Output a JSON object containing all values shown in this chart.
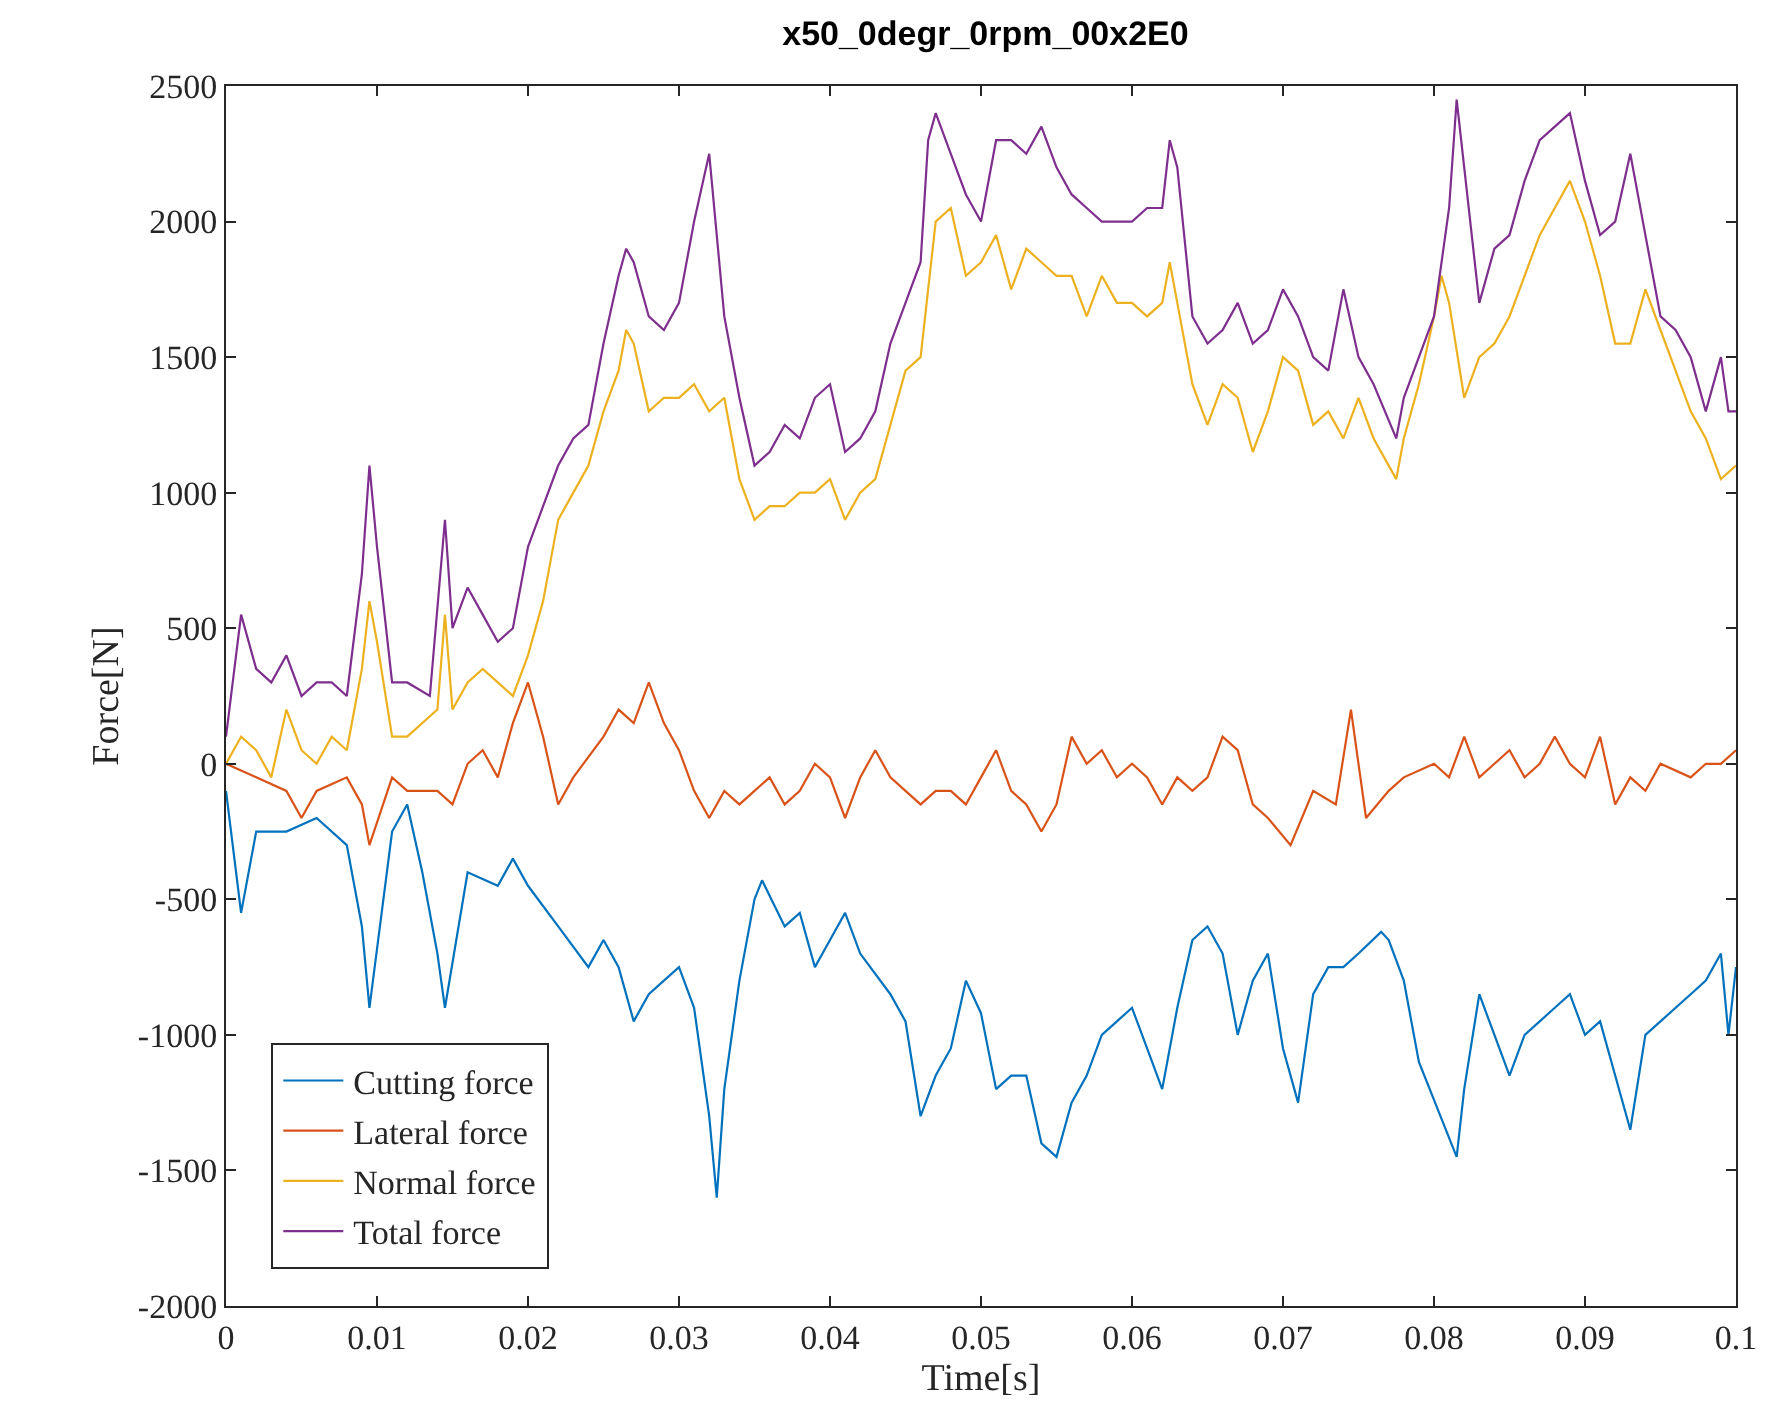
{
  "chart_data": {
    "type": "line",
    "title": "x50_0degr_0rpm_00x2E0",
    "xlabel": "Time[s]",
    "ylabel": "Force[N]",
    "xlim": [
      0,
      0.1
    ],
    "xticks": [
      0,
      0.01,
      0.02,
      0.03,
      0.04,
      0.05,
      0.06,
      0.07,
      0.08,
      0.09,
      0.1
    ],
    "ylim": [
      -2000,
      2500
    ],
    "yticks": [
      -2000,
      -1500,
      -1000,
      -500,
      0,
      500,
      1000,
      1500,
      2000,
      2500
    ],
    "legend": "bottom left",
    "marker": "none",
    "line_style": "solid",
    "series": [
      {
        "name": "Cutting force",
        "color": "#0072bd",
        "x": [
          0,
          0.001,
          0.002,
          0.004,
          0.006,
          0.008,
          0.009,
          0.0095,
          0.011,
          0.012,
          0.013,
          0.014,
          0.0145,
          0.016,
          0.018,
          0.019,
          0.02,
          0.022,
          0.024,
          0.025,
          0.026,
          0.027,
          0.028,
          0.029,
          0.03,
          0.031,
          0.032,
          0.0325,
          0.033,
          0.034,
          0.035,
          0.0355,
          0.037,
          0.038,
          0.039,
          0.04,
          0.041,
          0.042,
          0.044,
          0.045,
          0.046,
          0.047,
          0.048,
          0.049,
          0.05,
          0.051,
          0.052,
          0.053,
          0.054,
          0.055,
          0.056,
          0.057,
          0.058,
          0.059,
          0.06,
          0.061,
          0.062,
          0.063,
          0.064,
          0.065,
          0.066,
          0.067,
          0.068,
          0.069,
          0.07,
          0.071,
          0.072,
          0.073,
          0.074,
          0.075,
          0.0765,
          0.077,
          0.078,
          0.079,
          0.0815,
          0.082,
          0.083,
          0.084,
          0.085,
          0.086,
          0.087,
          0.088,
          0.089,
          0.09,
          0.091,
          0.092,
          0.093,
          0.094,
          0.095,
          0.097,
          0.098,
          0.099,
          0.0995,
          0.1
        ],
        "values": [
          -100,
          -550,
          -250,
          -250,
          -200,
          -300,
          -600,
          -900,
          -250,
          -150,
          -400,
          -700,
          -900,
          -400,
          -450,
          -350,
          -450,
          -600,
          -750,
          -650,
          -750,
          -950,
          -850,
          -800,
          -750,
          -900,
          -1300,
          -1600,
          -1200,
          -800,
          -500,
          -430,
          -600,
          -550,
          -750,
          -650,
          -550,
          -700,
          -850,
          -950,
          -1300,
          -1150,
          -1050,
          -800,
          -920,
          -1200,
          -1150,
          -1150,
          -1400,
          -1450,
          -1250,
          -1150,
          -1000,
          -950,
          -900,
          -1050,
          -1200,
          -900,
          -650,
          -600,
          -700,
          -1000,
          -800,
          -700,
          -1050,
          -1250,
          -850,
          -750,
          -750,
          -700,
          -620,
          -650,
          -800,
          -1100,
          -1450,
          -1200,
          -850,
          -1000,
          -1150,
          -1000,
          -950,
          -900,
          -850,
          -1000,
          -950,
          -1150,
          -1350,
          -1000,
          -950,
          -850,
          -800,
          -700,
          -1000,
          -750
        ]
      },
      {
        "name": "Lateral force",
        "color": "#d95319",
        "x": [
          0,
          0.002,
          0.004,
          0.005,
          0.006,
          0.008,
          0.009,
          0.0095,
          0.011,
          0.012,
          0.014,
          0.015,
          0.016,
          0.017,
          0.018,
          0.019,
          0.02,
          0.021,
          0.022,
          0.023,
          0.025,
          0.026,
          0.027,
          0.028,
          0.029,
          0.03,
          0.031,
          0.032,
          0.033,
          0.034,
          0.035,
          0.036,
          0.037,
          0.038,
          0.039,
          0.04,
          0.041,
          0.042,
          0.043,
          0.044,
          0.045,
          0.046,
          0.047,
          0.048,
          0.049,
          0.05,
          0.051,
          0.052,
          0.053,
          0.054,
          0.055,
          0.056,
          0.057,
          0.058,
          0.059,
          0.06,
          0.061,
          0.062,
          0.063,
          0.064,
          0.065,
          0.066,
          0.067,
          0.068,
          0.069,
          0.0705,
          0.072,
          0.0735,
          0.0745,
          0.075,
          0.0755,
          0.077,
          0.078,
          0.08,
          0.081,
          0.082,
          0.083,
          0.084,
          0.085,
          0.086,
          0.087,
          0.088,
          0.089,
          0.09,
          0.091,
          0.092,
          0.093,
          0.094,
          0.095,
          0.097,
          0.098,
          0.099,
          0.1
        ],
        "values": [
          0,
          -50,
          -100,
          -200,
          -100,
          -50,
          -150,
          -300,
          -50,
          -100,
          -100,
          -150,
          0,
          50,
          -50,
          150,
          300,
          100,
          -150,
          -50,
          100,
          200,
          150,
          300,
          150,
          50,
          -100,
          -200,
          -100,
          -150,
          -100,
          -50,
          -150,
          -100,
          0,
          -50,
          -200,
          -50,
          50,
          -50,
          -100,
          -150,
          -100,
          -100,
          -150,
          -50,
          50,
          -100,
          -150,
          -250,
          -150,
          100,
          0,
          50,
          -50,
          0,
          -50,
          -150,
          -50,
          -100,
          -50,
          100,
          50,
          -150,
          -200,
          -300,
          -100,
          -150,
          200,
          0,
          -200,
          -100,
          -50,
          0,
          -50,
          100,
          -50,
          0,
          50,
          -50,
          0,
          100,
          0,
          -50,
          100,
          -150,
          -50,
          -100,
          0,
          -50,
          0,
          0,
          50
        ]
      },
      {
        "name": "Normal force",
        "color": "#edb120",
        "x": [
          0,
          0.001,
          0.002,
          0.003,
          0.004,
          0.005,
          0.006,
          0.007,
          0.008,
          0.009,
          0.0095,
          0.01,
          0.011,
          0.012,
          0.014,
          0.0145,
          0.015,
          0.016,
          0.017,
          0.018,
          0.019,
          0.02,
          0.021,
          0.022,
          0.023,
          0.024,
          0.025,
          0.026,
          0.0265,
          0.027,
          0.028,
          0.029,
          0.03,
          0.031,
          0.032,
          0.033,
          0.034,
          0.035,
          0.036,
          0.037,
          0.038,
          0.039,
          0.04,
          0.041,
          0.042,
          0.043,
          0.044,
          0.045,
          0.046,
          0.047,
          0.048,
          0.049,
          0.05,
          0.051,
          0.052,
          0.053,
          0.054,
          0.055,
          0.056,
          0.057,
          0.058,
          0.059,
          0.06,
          0.061,
          0.062,
          0.0625,
          0.063,
          0.064,
          0.065,
          0.066,
          0.067,
          0.068,
          0.069,
          0.07,
          0.071,
          0.072,
          0.073,
          0.074,
          0.075,
          0.076,
          0.0775,
          0.078,
          0.079,
          0.08,
          0.0805,
          0.081,
          0.082,
          0.083,
          0.084,
          0.085,
          0.086,
          0.087,
          0.088,
          0.089,
          0.09,
          0.091,
          0.092,
          0.093,
          0.094,
          0.095,
          0.096,
          0.097,
          0.098,
          0.099,
          0.1
        ],
        "values": [
          0,
          100,
          50,
          -50,
          200,
          50,
          0,
          100,
          50,
          350,
          600,
          450,
          100,
          100,
          200,
          550,
          200,
          300,
          350,
          300,
          250,
          400,
          600,
          900,
          1000,
          1100,
          1300,
          1450,
          1600,
          1550,
          1300,
          1350,
          1350,
          1400,
          1300,
          1350,
          1050,
          900,
          950,
          950,
          1000,
          1000,
          1050,
          900,
          1000,
          1050,
          1250,
          1450,
          1500,
          2000,
          2050,
          1800,
          1850,
          1950,
          1750,
          1900,
          1850,
          1800,
          1800,
          1650,
          1800,
          1700,
          1700,
          1650,
          1700,
          1850,
          1700,
          1400,
          1250,
          1400,
          1350,
          1150,
          1300,
          1500,
          1450,
          1250,
          1300,
          1200,
          1350,
          1200,
          1050,
          1200,
          1400,
          1650,
          1800,
          1700,
          1350,
          1500,
          1550,
          1650,
          1800,
          1950,
          2050,
          2150,
          2000,
          1800,
          1550,
          1550,
          1750,
          1600,
          1450,
          1300,
          1200,
          1050,
          1100
        ]
      },
      {
        "name": "Total force",
        "color": "#7e2f8e",
        "x": [
          0,
          0.001,
          0.002,
          0.003,
          0.004,
          0.005,
          0.006,
          0.007,
          0.008,
          0.009,
          0.0095,
          0.01,
          0.011,
          0.012,
          0.0135,
          0.0145,
          0.015,
          0.016,
          0.017,
          0.018,
          0.019,
          0.02,
          0.021,
          0.022,
          0.023,
          0.024,
          0.025,
          0.026,
          0.0265,
          0.027,
          0.028,
          0.029,
          0.03,
          0.031,
          0.032,
          0.033,
          0.034,
          0.035,
          0.036,
          0.037,
          0.038,
          0.039,
          0.04,
          0.041,
          0.042,
          0.043,
          0.044,
          0.045,
          0.046,
          0.0465,
          0.047,
          0.048,
          0.049,
          0.05,
          0.051,
          0.052,
          0.053,
          0.054,
          0.055,
          0.056,
          0.057,
          0.058,
          0.059,
          0.06,
          0.061,
          0.062,
          0.0625,
          0.063,
          0.064,
          0.065,
          0.066,
          0.067,
          0.068,
          0.069,
          0.07,
          0.071,
          0.072,
          0.073,
          0.074,
          0.075,
          0.076,
          0.0775,
          0.078,
          0.079,
          0.08,
          0.081,
          0.0815,
          0.082,
          0.083,
          0.084,
          0.085,
          0.086,
          0.087,
          0.088,
          0.089,
          0.09,
          0.091,
          0.092,
          0.093,
          0.094,
          0.095,
          0.096,
          0.097,
          0.098,
          0.099,
          0.0995,
          0.1
        ],
        "values": [
          100,
          550,
          350,
          300,
          400,
          250,
          300,
          300,
          250,
          700,
          1100,
          800,
          300,
          300,
          250,
          900,
          500,
          650,
          550,
          450,
          500,
          800,
          950,
          1100,
          1200,
          1250,
          1550,
          1800,
          1900,
          1850,
          1650,
          1600,
          1700,
          2000,
          2250,
          1650,
          1350,
          1100,
          1150,
          1250,
          1200,
          1350,
          1400,
          1150,
          1200,
          1300,
          1550,
          1700,
          1850,
          2300,
          2400,
          2250,
          2100,
          2000,
          2300,
          2300,
          2250,
          2350,
          2200,
          2100,
          2050,
          2000,
          2000,
          2000,
          2050,
          2050,
          2300,
          2200,
          1650,
          1550,
          1600,
          1700,
          1550,
          1600,
          1750,
          1650,
          1500,
          1450,
          1750,
          1500,
          1400,
          1200,
          1350,
          1500,
          1650,
          2050,
          2450,
          2200,
          1700,
          1900,
          1950,
          2150,
          2300,
          2350,
          2400,
          2150,
          1950,
          2000,
          2250,
          1950,
          1650,
          1600,
          1500,
          1300,
          1500,
          1300,
          1300
        ]
      }
    ]
  }
}
